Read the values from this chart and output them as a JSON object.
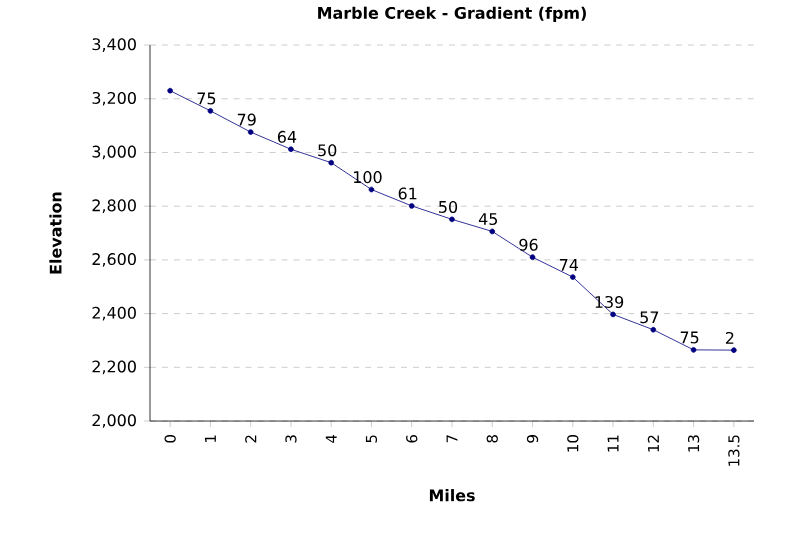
{
  "chart_data": {
    "type": "line",
    "title": "Marble Creek - Gradient (fpm)",
    "xlabel": "Miles",
    "ylabel": "Elevation",
    "categories": [
      "0",
      "1",
      "2",
      "3",
      "4",
      "5",
      "6",
      "7",
      "8",
      "9",
      "10",
      "11",
      "12",
      "13",
      "13.5"
    ],
    "values": [
      3230,
      3155,
      3076,
      3012,
      2962,
      2862,
      2801,
      2751,
      2706,
      2610,
      2536,
      2397,
      2340,
      2265,
      2264
    ],
    "annotations": [
      {
        "text": "75",
        "x": "1",
        "y": 3155
      },
      {
        "text": "79",
        "x": "2",
        "y": 3076
      },
      {
        "text": "64",
        "x": "3",
        "y": 3012
      },
      {
        "text": "50",
        "x": "4",
        "y": 2962
      },
      {
        "text": "100",
        "x": "5",
        "y": 2862
      },
      {
        "text": "61",
        "x": "6",
        "y": 2801
      },
      {
        "text": "50",
        "x": "7",
        "y": 2751
      },
      {
        "text": "45",
        "x": "8",
        "y": 2706
      },
      {
        "text": "96",
        "x": "9",
        "y": 2610
      },
      {
        "text": "74",
        "x": "10",
        "y": 2536
      },
      {
        "text": "139",
        "x": "11",
        "y": 2397
      },
      {
        "text": "57",
        "x": "12",
        "y": 2340
      },
      {
        "text": "75",
        "x": "13",
        "y": 2265
      },
      {
        "text": "2",
        "x": "13.5",
        "y": 2264
      }
    ],
    "color": "#000080",
    "marker": "circle",
    "grid": "y",
    "ylim": [
      2000,
      3400
    ],
    "yticks": [
      {
        "value": 2000,
        "label": "2,000"
      },
      {
        "value": 2200,
        "label": "2,200"
      },
      {
        "value": 2400,
        "label": "2,400"
      },
      {
        "value": 2600,
        "label": "2,600"
      },
      {
        "value": 2800,
        "label": "2,800"
      },
      {
        "value": 3000,
        "label": "3,000"
      },
      {
        "value": 3200,
        "label": "3,200"
      },
      {
        "value": 3400,
        "label": "3,400"
      }
    ]
  }
}
